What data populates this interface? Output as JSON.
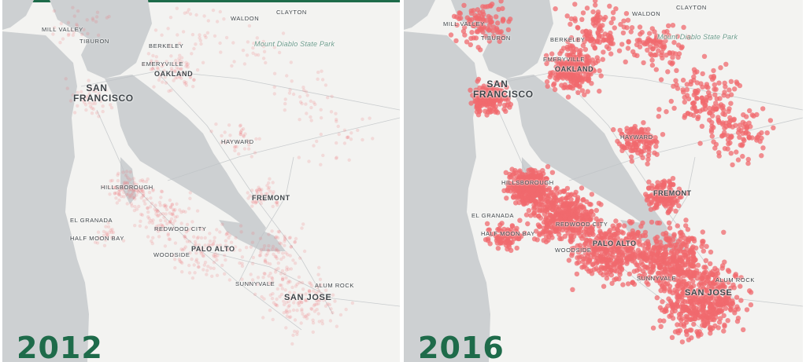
{
  "colors": {
    "water": "#cdd0d2",
    "land": "#f3f3f1",
    "accent": "#1e6b4a",
    "density": "#f06a6e"
  },
  "panels": [
    {
      "year": "2012",
      "labels": {
        "mill_valley": "MILL VALLEY",
        "tiburon": "TIBURON",
        "berkeley": "BERKELEY",
        "emeryville": "EMERYVILLE",
        "oakland": "OAKLAND",
        "waldon": "WALDON",
        "clayton": "CLAYTON",
        "mount_diablo": "Mount Diablo State Park",
        "san": "SAN",
        "francisco": "FRANCISCO",
        "hayward": "HAYWARD",
        "hillsborough": "HILLSBOROUGH",
        "fremont": "FREMONT",
        "el_granada": "EL GRANADA",
        "half_moon_bay": "HALF MOON BAY",
        "redwood_city": "REDWOOD CITY",
        "woodside": "WOODSIDE",
        "palo_alto": "PALO ALTO",
        "sunnyvale": "SUNNYVALE",
        "alum_rock": "ALUM ROCK",
        "san_jose": "SAN JOSE"
      }
    },
    {
      "year": "2016",
      "labels": {
        "mill_valley": "MILL VALLEY",
        "tiburon": "TIBURON",
        "berkeley": "BERKELEY",
        "emeryville": "EMERYVILLE",
        "oakland": "OAKLAND",
        "waldon": "WALDON",
        "clayton": "CLAYTON",
        "mount_diablo": "Mount Diablo State Park",
        "san": "SAN",
        "francisco": "FRANCISCO",
        "hayward": "HAYWARD",
        "hillsborough": "HILLSBOROUGH",
        "fremont": "FREMONT",
        "el_granada": "EL GRANADA",
        "half_moon_bay": "HALF MOON BAY",
        "redwood_city": "REDWOOD CITY",
        "woodside": "WOODSIDE",
        "palo_alto": "PALO ALTO",
        "sunnyvale": "SUNNYVALE",
        "alum_rock": "ALUM ROCK",
        "san_jose": "SAN JOSE"
      }
    }
  ]
}
